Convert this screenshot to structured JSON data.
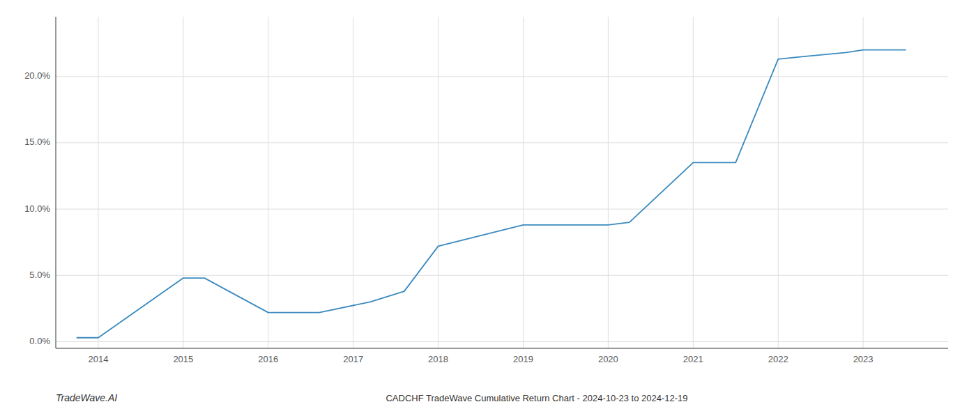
{
  "chart_data": {
    "type": "line",
    "title": "CADCHF TradeWave Cumulative Return Chart - 2024-10-23 to 2024-12-19",
    "annotations": [
      "TradeWave.AI"
    ],
    "x": [
      2013.75,
      2014.0,
      2015.0,
      2015.25,
      2016.0,
      2016.6,
      2017.2,
      2017.6,
      2018.0,
      2018.5,
      2019.0,
      2019.4,
      2019.8,
      2020.0,
      2020.25,
      2021.0,
      2021.5,
      2022.0,
      2022.3,
      2022.8,
      2023.0,
      2023.5
    ],
    "values": [
      0.003,
      0.003,
      0.048,
      0.048,
      0.022,
      0.022,
      0.03,
      0.038,
      0.072,
      0.08,
      0.088,
      0.088,
      0.088,
      0.088,
      0.09,
      0.135,
      0.135,
      0.213,
      0.215,
      0.218,
      0.22,
      0.22
    ],
    "color": "#3a8abf",
    "grid": true,
    "xlim": [
      2013.5,
      2024.0
    ],
    "xticks": [
      2014,
      2015,
      2016,
      2017,
      2018,
      2019,
      2020,
      2021,
      2022,
      2023
    ],
    "ylim": [
      -0.005,
      0.245
    ],
    "yticks": [
      {
        "value": 0.0,
        "label": "0.0%"
      },
      {
        "value": 0.05,
        "label": "5.0%"
      },
      {
        "value": 0.1,
        "label": "10.0%"
      },
      {
        "value": 0.15,
        "label": "15.0%"
      },
      {
        "value": 0.2,
        "label": "20.0%"
      }
    ]
  }
}
